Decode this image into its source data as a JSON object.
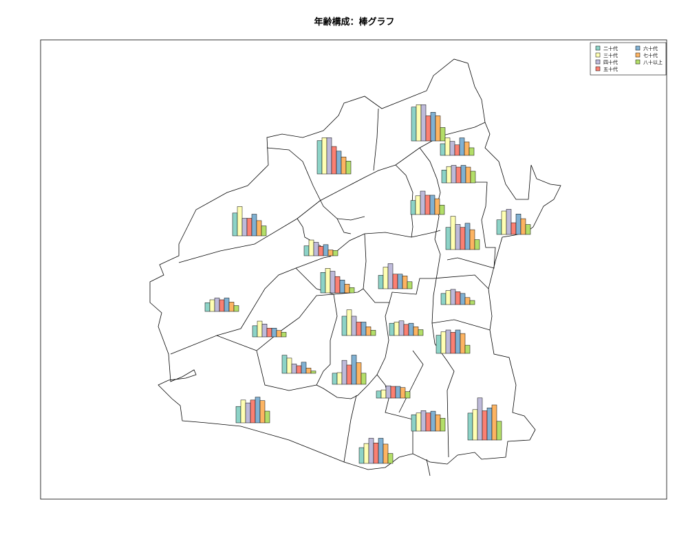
{
  "chart_data": {
    "type": "bar",
    "title": "年齢構成：棒グラフ",
    "categories": [
      "二十代",
      "三十代",
      "四十代",
      "五十代",
      "六十代",
      "七十代",
      "八十以上"
    ],
    "colors": [
      "#8dd3c7",
      "#ffffb3",
      "#bebada",
      "#fb8072",
      "#80b1d3",
      "#fdb462",
      "#b3de69"
    ],
    "legend": {
      "position": "top-right",
      "entries": [
        "二十代",
        "三十代",
        "四十代",
        "五十代",
        "六十代",
        "七十代",
        "八十以上"
      ]
    },
    "districts": [
      {
        "values": [
          58,
          62,
          62,
          43,
          49,
          43,
          23
        ]
      },
      {
        "values": [
          57,
          62,
          62,
          47,
          39,
          29,
          22
        ]
      },
      {
        "values": [
          22,
          28,
          30,
          27,
          30,
          27,
          20
        ]
      },
      {
        "values": [
          39,
          50,
          30,
          30,
          37,
          26,
          17
        ]
      },
      {
        "values": [
          24,
          32,
          40,
          33,
          33,
          27,
          16
        ]
      },
      {
        "values": [
          25,
          40,
          43,
          20,
          35,
          27,
          17
        ]
      },
      {
        "values": [
          20,
          30,
          24,
          18,
          30,
          23,
          13
        ]
      },
      {
        "values": [
          17,
          27,
          23,
          16,
          19,
          10,
          9
        ]
      },
      {
        "values": [
          38,
          57,
          43,
          38,
          45,
          34,
          17
        ]
      },
      {
        "values": [
          23,
          37,
          43,
          25,
          25,
          22,
          12
        ]
      },
      {
        "values": [
          35,
          42,
          37,
          28,
          22,
          15,
          9
        ]
      },
      {
        "values": [
          33,
          44,
          33,
          23,
          23,
          15,
          9
        ]
      },
      {
        "values": [
          15,
          20,
          23,
          20,
          23,
          16,
          10
        ]
      },
      {
        "values": [
          19,
          27,
          22,
          15,
          15,
          11,
          8
        ]
      },
      {
        "values": [
          21,
          23,
          25,
          19,
          21,
          15,
          10
        ]
      },
      {
        "values": [
          19,
          24,
          26,
          22,
          19,
          12,
          7
        ]
      },
      {
        "values": [
          31,
          26,
          16,
          13,
          19,
          9,
          4
        ]
      },
      {
        "values": [
          31,
          37,
          40,
          36,
          40,
          34,
          14
        ]
      },
      {
        "values": [
          12,
          14,
          21,
          20,
          20,
          18,
          11
        ]
      },
      {
        "values": [
          19,
          20,
          41,
          33,
          50,
          37,
          19
        ]
      },
      {
        "values": [
          28,
          31,
          35,
          31,
          34,
          28,
          22
        ]
      },
      {
        "values": [
          28,
          39,
          34,
          39,
          44,
          38,
          20
        ]
      },
      {
        "values": [
          27,
          34,
          43,
          35,
          43,
          33,
          17
        ]
      },
      {
        "values": [
          46,
          52,
          72,
          50,
          55,
          60,
          32
        ]
      },
      {
        "values": [
          39,
          45,
          53,
          40,
          45,
          42,
          28
        ]
      }
    ]
  }
}
